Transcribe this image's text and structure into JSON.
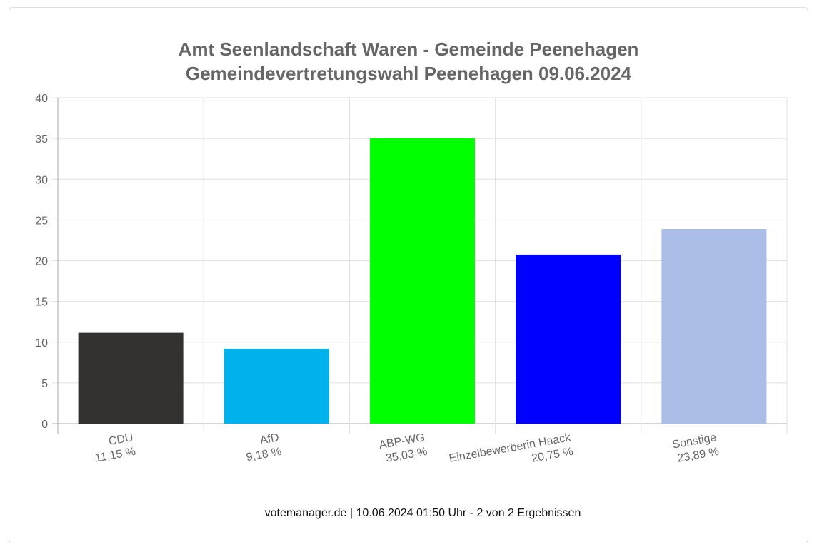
{
  "chart_data": {
    "type": "bar",
    "title": [
      "Amt Seenlandschaft Waren - Gemeinde Peenehagen",
      "Gemeindevertretungswahl Peenehagen 09.06.2024"
    ],
    "categories": [
      "CDU",
      "AfD",
      "ABP-WG",
      "Einzelbewerberin Haack",
      "Sonstige"
    ],
    "values": [
      11.15,
      9.18,
      35.03,
      20.75,
      23.89
    ],
    "value_labels": [
      "11,15 %",
      "9,18 %",
      "35,03 %",
      "20,75 %",
      "23,89 %"
    ],
    "colors": [
      "#333230",
      "#00b2ec",
      "#00ff00",
      "#0000ff",
      "#aabde6"
    ],
    "yticks": [
      0,
      5,
      10,
      15,
      20,
      25,
      30,
      35,
      40
    ],
    "ylim": [
      0,
      40
    ],
    "grid": true,
    "xlabel": "",
    "ylabel": ""
  },
  "footer": "votemanager.de | 10.06.2024 01:50 Uhr - 2 von 2 Ergebnissen"
}
